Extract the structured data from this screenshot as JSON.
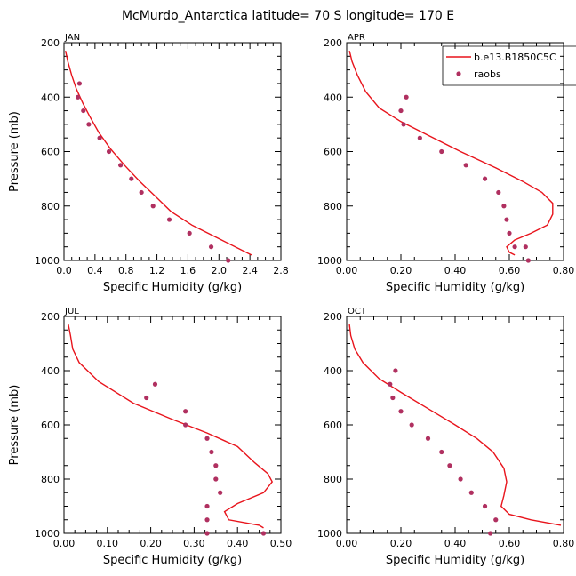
{
  "title": "McMurdo_Antarctica   latitude= 70 S longitude= 170 E",
  "colors": {
    "model": "#e8141c",
    "obs": "#b03060",
    "axis": "#000000"
  },
  "legend": {
    "model_label": "b.e13.B1850C5C",
    "obs_label": "raobs"
  },
  "chart_data": [
    {
      "type": "line",
      "panel": "JAN",
      "xlabel": "Specific Humidity (g/kg)",
      "ylabel": "Pressure (mb)",
      "xlim": [
        0.0,
        2.8
      ],
      "ylim": [
        1000,
        200
      ],
      "xticks": [
        0.0,
        0.4,
        0.8,
        1.2,
        1.6,
        2.0,
        2.4,
        2.8
      ],
      "xtick_labels": [
        "0.0",
        "0.4",
        "0.8",
        "1.2",
        "1.6",
        "2.0",
        "2.4",
        "2.8"
      ],
      "yticks": [
        200,
        400,
        600,
        800,
        1000
      ],
      "ytick_labels": [
        "200",
        "400",
        "600",
        "800",
        "1000"
      ],
      "series": [
        {
          "name": "b.e13.B1850C5C",
          "kind": "line",
          "x": [
            0.02,
            0.05,
            0.1,
            0.16,
            0.24,
            0.33,
            0.45,
            0.6,
            0.78,
            0.98,
            1.2,
            1.38,
            1.65,
            2.0,
            2.42
          ],
          "y": [
            230,
            270,
            320,
            370,
            420,
            470,
            530,
            590,
            650,
            710,
            770,
            820,
            870,
            920,
            980
          ]
        },
        {
          "name": "raobs",
          "kind": "scatter",
          "x": [
            0.2,
            0.18,
            0.25,
            0.32,
            0.46,
            0.58,
            0.73,
            0.87,
            1.0,
            1.15,
            1.36,
            1.62,
            1.9,
            2.12
          ],
          "y": [
            350,
            400,
            450,
            500,
            550,
            600,
            650,
            700,
            750,
            800,
            850,
            900,
            950,
            1000
          ]
        }
      ]
    },
    {
      "type": "line",
      "panel": "APR",
      "xlabel": "Specific Humidity (g/kg)",
      "ylabel": "Pressure (mb)",
      "xlim": [
        0.0,
        0.8
      ],
      "ylim": [
        1000,
        200
      ],
      "xticks": [
        0.0,
        0.2,
        0.4,
        0.6,
        0.8
      ],
      "xtick_labels": [
        "0.00",
        "0.20",
        "0.40",
        "0.60",
        "0.80"
      ],
      "yticks": [
        200,
        400,
        600,
        800,
        1000
      ],
      "ytick_labels": [
        "200",
        "400",
        "600",
        "800",
        "1000"
      ],
      "series": [
        {
          "name": "b.e13.B1850C5C",
          "kind": "line",
          "x": [
            0.01,
            0.02,
            0.04,
            0.07,
            0.12,
            0.2,
            0.3,
            0.42,
            0.55,
            0.65,
            0.72,
            0.76,
            0.76,
            0.74,
            0.68,
            0.62,
            0.59,
            0.6,
            0.62
          ],
          "y": [
            230,
            270,
            320,
            380,
            440,
            490,
            540,
            600,
            660,
            710,
            750,
            790,
            830,
            870,
            900,
            925,
            950,
            970,
            980
          ]
        },
        {
          "name": "raobs",
          "kind": "scatter",
          "x": [
            0.22,
            0.2,
            0.21,
            0.27,
            0.35,
            0.44,
            0.51,
            0.56,
            0.58,
            0.59,
            0.6,
            0.62,
            0.66,
            0.67
          ],
          "y": [
            400,
            450,
            500,
            550,
            600,
            650,
            700,
            750,
            800,
            850,
            900,
            950,
            950,
            1000
          ]
        }
      ]
    },
    {
      "type": "line",
      "panel": "JUL",
      "xlabel": "Specific Humidity (g/kg)",
      "ylabel": "Pressure (mb)",
      "xlim": [
        0.0,
        0.5
      ],
      "ylim": [
        1000,
        200
      ],
      "xticks": [
        0.0,
        0.1,
        0.2,
        0.3,
        0.4,
        0.5
      ],
      "xtick_labels": [
        "0.00",
        "0.10",
        "0.20",
        "0.30",
        "0.40",
        "0.50"
      ],
      "yticks": [
        200,
        400,
        600,
        800,
        1000
      ],
      "ytick_labels": [
        "200",
        "400",
        "600",
        "800",
        "1000"
      ],
      "series": [
        {
          "name": "b.e13.B1850C5C",
          "kind": "line",
          "x": [
            0.01,
            0.015,
            0.02,
            0.035,
            0.08,
            0.16,
            0.25,
            0.33,
            0.4,
            0.44,
            0.47,
            0.48,
            0.46,
            0.4,
            0.37,
            0.38,
            0.45,
            0.46
          ],
          "y": [
            230,
            270,
            320,
            370,
            440,
            520,
            580,
            630,
            680,
            740,
            780,
            810,
            850,
            890,
            920,
            950,
            970,
            980
          ]
        },
        {
          "name": "raobs",
          "kind": "scatter",
          "x": [
            0.21,
            0.19,
            0.28,
            0.28,
            0.33,
            0.34,
            0.35,
            0.35,
            0.36,
            0.33,
            0.33,
            0.33,
            0.46
          ],
          "y": [
            450,
            500,
            550,
            600,
            650,
            700,
            750,
            800,
            850,
            900,
            950,
            1000,
            1000
          ]
        }
      ]
    },
    {
      "type": "line",
      "panel": "OCT",
      "xlabel": "Specific Humidity (g/kg)",
      "ylabel": "Pressure (mb)",
      "xlim": [
        0.0,
        0.8
      ],
      "ylim": [
        1000,
        200
      ],
      "xticks": [
        0.0,
        0.2,
        0.4,
        0.6,
        0.8
      ],
      "xtick_labels": [
        "0.00",
        "0.20",
        "0.40",
        "0.60",
        "0.80"
      ],
      "yticks": [
        200,
        400,
        600,
        800,
        1000
      ],
      "ytick_labels": [
        "200",
        "400",
        "600",
        "800",
        "1000"
      ],
      "series": [
        {
          "name": "b.e13.B1850C5C",
          "kind": "line",
          "x": [
            0.01,
            0.015,
            0.03,
            0.06,
            0.12,
            0.2,
            0.3,
            0.4,
            0.48,
            0.54,
            0.58,
            0.59,
            0.58,
            0.57,
            0.6,
            0.68,
            0.79
          ],
          "y": [
            230,
            270,
            320,
            370,
            430,
            480,
            540,
            600,
            650,
            700,
            760,
            810,
            860,
            900,
            930,
            950,
            970
          ]
        },
        {
          "name": "raobs",
          "kind": "scatter",
          "x": [
            0.18,
            0.16,
            0.17,
            0.2,
            0.24,
            0.3,
            0.35,
            0.38,
            0.42,
            0.46,
            0.51,
            0.55,
            0.53
          ],
          "y": [
            400,
            450,
            500,
            550,
            600,
            650,
            700,
            750,
            800,
            850,
            900,
            950,
            1000
          ]
        }
      ]
    }
  ]
}
